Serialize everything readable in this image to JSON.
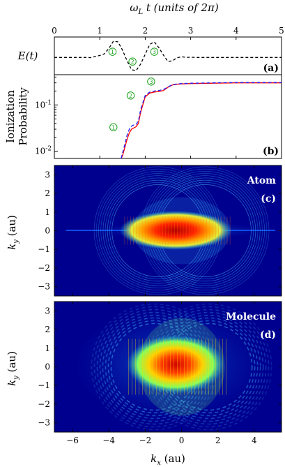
{
  "colors": {
    "field_line": "#000000",
    "prob_red": "#ff0000",
    "prob_blue": "#2020ff",
    "marker": "#1aa01a",
    "map_bg": "#00008f"
  },
  "chart_data": [
    {
      "panel": "a",
      "type": "line",
      "top_axis_label": "ω_L t (units of 2π)",
      "top_axis_label_parts": {
        "omega": "ω",
        "sub": "L",
        "rest": " t (units of 2π)"
      },
      "ylabel": "E(t)",
      "panel_label": "(a)",
      "xlim": [
        0,
        5
      ],
      "ylim": [
        -1.15,
        1.15
      ],
      "xticks": [
        "0",
        "1",
        "2",
        "3",
        "4",
        "5"
      ],
      "x": [
        0,
        0.1,
        0.2,
        0.3,
        0.4,
        0.5,
        0.6,
        0.7,
        0.8,
        0.9,
        1.0,
        1.1,
        1.2,
        1.3,
        1.4,
        1.5,
        1.6,
        1.7,
        1.8,
        1.9,
        2.0,
        2.1,
        2.2,
        2.3,
        2.4,
        2.5,
        2.6,
        2.7,
        2.8,
        2.9,
        3.0,
        3.1,
        3.2,
        3.3,
        3.4,
        3.5,
        4.0,
        4.5,
        5.0
      ],
      "y": [
        -0.1,
        -0.1,
        -0.1,
        -0.1,
        -0.1,
        -0.1,
        -0.1,
        -0.1,
        -0.11,
        -0.04,
        0.02,
        0.12,
        0.45,
        0.9,
        0.85,
        0.35,
        -0.3,
        -0.85,
        -0.9,
        -0.5,
        0.1,
        0.7,
        0.85,
        0.5,
        0.05,
        -0.35,
        -0.3,
        -0.12,
        -0.05,
        -0.1,
        -0.08,
        -0.1,
        -0.1,
        -0.1,
        -0.1,
        -0.1,
        -0.1,
        -0.1,
        -0.1
      ],
      "style": "dashed",
      "markers": [
        {
          "label": "1",
          "x": 1.28,
          "y": 0.25
        },
        {
          "label": "2",
          "x": 1.72,
          "y": -0.35
        },
        {
          "label": "3",
          "x": 2.2,
          "y": 0.25
        }
      ]
    },
    {
      "panel": "b",
      "type": "line",
      "ylabel": "Ionization Probability",
      "ylabel_lines": [
        "Ionization",
        "Probability"
      ],
      "panel_label": "(b)",
      "yscale": "log",
      "xlim": [
        0,
        5
      ],
      "ylim": [
        0.007,
        0.45
      ],
      "yticks": [
        {
          "value": 0.01,
          "base": "10",
          "exp": "-2"
        },
        {
          "value": 0.1,
          "base": "10",
          "exp": "-1"
        }
      ],
      "series": [
        {
          "color": "red",
          "style": "solid",
          "x": [
            1.47,
            1.5,
            1.55,
            1.6,
            1.65,
            1.7,
            1.75,
            1.8,
            1.85,
            1.9,
            2.0,
            2.1,
            2.2,
            2.3,
            2.4,
            2.5,
            2.6,
            2.7,
            2.8,
            3.0,
            3.5,
            4.0,
            4.5,
            5.0
          ],
          "y": [
            0.006,
            0.008,
            0.012,
            0.018,
            0.025,
            0.03,
            0.032,
            0.034,
            0.04,
            0.07,
            0.15,
            0.18,
            0.19,
            0.195,
            0.205,
            0.24,
            0.27,
            0.28,
            0.285,
            0.29,
            0.295,
            0.3,
            0.3,
            0.3
          ]
        },
        {
          "color": "blue",
          "style": "dashed",
          "x": [
            1.47,
            1.5,
            1.55,
            1.6,
            1.65,
            1.7,
            1.75,
            1.8,
            1.85,
            1.9,
            2.0,
            2.1,
            2.2,
            2.3,
            2.4,
            2.5,
            2.6,
            2.7,
            2.8,
            3.0,
            3.5,
            4.0,
            4.5,
            5.0
          ],
          "y": [
            0.006,
            0.009,
            0.014,
            0.022,
            0.03,
            0.035,
            0.037,
            0.038,
            0.045,
            0.08,
            0.16,
            0.19,
            0.2,
            0.205,
            0.215,
            0.245,
            0.275,
            0.285,
            0.29,
            0.295,
            0.3,
            0.305,
            0.305,
            0.305
          ]
        }
      ],
      "markers": [
        {
          "label": "1",
          "x": 1.3,
          "y": 0.033
        },
        {
          "label": "2",
          "x": 1.68,
          "y": 0.16
        },
        {
          "label": "3",
          "x": 2.13,
          "y": 0.32
        }
      ]
    },
    {
      "panel": "c",
      "type": "heatmap",
      "title": "Atom",
      "panel_label": "(c)",
      "ylabel": "k_y (au)",
      "ylabel_parts": {
        "k": "k",
        "sub": "y",
        "rest": " (au)"
      },
      "xlim": [
        -7,
        5.5
      ],
      "ylim": [
        -3.5,
        3.5
      ],
      "yticks": [
        "3",
        "2",
        "1",
        "0",
        "−1",
        "−2",
        "−3"
      ],
      "ytick_values": [
        3,
        2,
        1,
        0,
        -1,
        -2,
        -3
      ]
    },
    {
      "panel": "d",
      "type": "heatmap",
      "title": "Molecule",
      "panel_label": "(d)",
      "xlabel": "k_x (au)",
      "xlabel_parts": {
        "k": "k",
        "sub": "x",
        "rest": " (au)"
      },
      "ylabel": "k_y (au)",
      "ylabel_parts": {
        "k": "k",
        "sub": "y",
        "rest": " (au)"
      },
      "xlim": [
        -7,
        5.5
      ],
      "ylim": [
        -3.5,
        3.5
      ],
      "xticks": [
        "−6",
        "−4",
        "−2",
        "0",
        "2",
        "4"
      ],
      "xtick_values": [
        -6,
        -4,
        -2,
        0,
        2,
        4
      ],
      "yticks": [
        "3",
        "2",
        "1",
        "0",
        "−1",
        "−2",
        "−3"
      ],
      "ytick_values": [
        3,
        2,
        1,
        0,
        -1,
        -2,
        -3
      ]
    }
  ]
}
